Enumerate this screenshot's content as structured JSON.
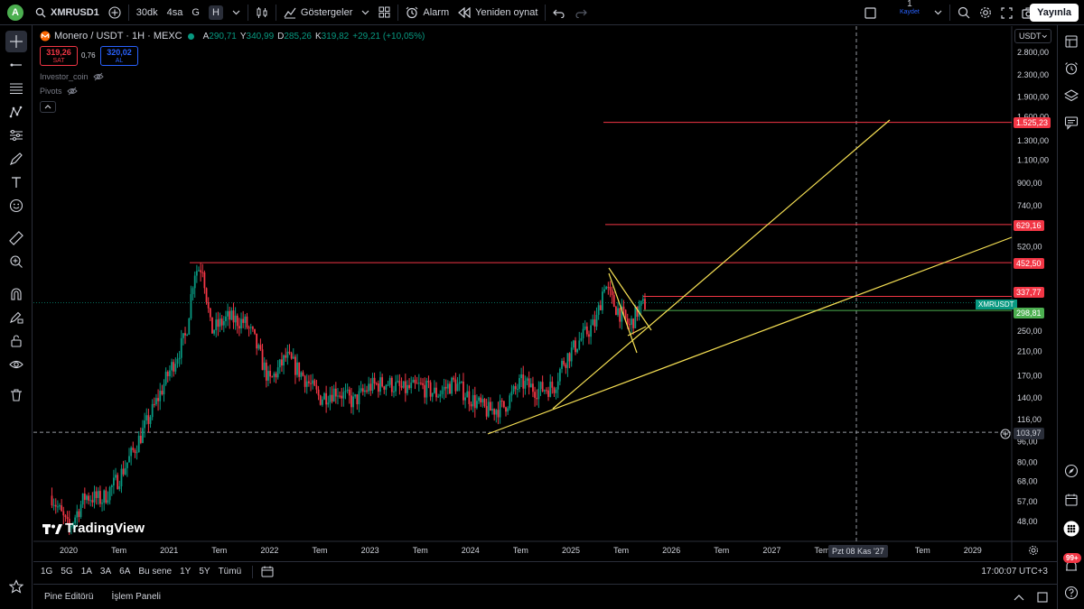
{
  "topbar": {
    "avatar_letter": "A",
    "symbol": "XMRUSD1",
    "intervals": [
      "30dk",
      "4sa",
      "G",
      "H"
    ],
    "indicators_label": "Göstergeler",
    "alarm_label": "Alarm",
    "replay_label": "Yeniden oynat",
    "save_count": "1",
    "save_label": "Kaydet",
    "publish_label": "Yayınla"
  },
  "legend": {
    "title": "Monero / USDT · 1H · MEXC",
    "open_label": "A",
    "open": "290,71",
    "high_label": "Y",
    "high": "340,99",
    "low_label": "D",
    "low": "285,26",
    "close_label": "K",
    "close": "319,82",
    "change": "+29,21 (+10,05%)"
  },
  "trade": {
    "sell_price": "319,26",
    "sell_label": "SAT",
    "spread": "0,76",
    "buy_price": "320,02",
    "buy_label": "AL"
  },
  "indicators": [
    {
      "name": "Investor_coin"
    },
    {
      "name": "Pivots"
    }
  ],
  "price_axis": {
    "currency": "USDT",
    "ticks": [
      "2.800,00",
      "2.300,00",
      "1.900,00",
      "1.600,00",
      "1.300,00",
      "1.100,00",
      "900,00",
      "740,00",
      "520,00",
      "250,00",
      "210,00",
      "170,00",
      "140,00",
      "116,00",
      "96,00",
      "80,00",
      "68,00",
      "57,00",
      "48,00"
    ],
    "level_tags": [
      "1.525,23",
      "629,16",
      "452,50",
      "337,77",
      "298,81"
    ],
    "symbol_tag": "XMRUSDT",
    "cursor_price": "103,97"
  },
  "time_axis": {
    "labels": [
      "2020",
      "Tem",
      "2021",
      "Tem",
      "2022",
      "Tem",
      "2023",
      "Tem",
      "2024",
      "Tem",
      "2025",
      "Tem",
      "2026",
      "Tem",
      "2027",
      "Tem",
      "Tem",
      "2029"
    ],
    "cursor_date": "Pzt 08 Kas '27"
  },
  "watermark": "TradingView",
  "range_bar": {
    "ranges": [
      "1G",
      "5G",
      "1A",
      "3A",
      "6A",
      "Bu sene",
      "1Y",
      "5Y",
      "Tümü"
    ],
    "clock": "17:00:07 UTC+3"
  },
  "panel_bar": {
    "pine_editor": "Pine Editörü",
    "trading_panel": "İşlem Paneli"
  },
  "notifications_badge": "99+",
  "colors": {
    "up": "#089981",
    "down": "#f23645",
    "level_line": "#f23645",
    "trend_line": "#f7e154",
    "accent": "#2962ff"
  },
  "chart_data": {
    "type": "candlestick",
    "symbol": "XMRUSDT",
    "interval": "1H",
    "price_scale": "log",
    "yrange": [
      40,
      3200
    ],
    "xrange": [
      "2019-10",
      "2029-07"
    ],
    "horizontal_levels": [
      1525.23,
      629.16,
      452.5,
      337.77,
      298.81
    ],
    "price_series": [
      [
        "2019-11",
        60
      ],
      [
        "2020-01",
        45
      ],
      [
        "2020-03",
        60
      ],
      [
        "2020-05",
        58
      ],
      [
        "2020-07",
        70
      ],
      [
        "2020-09",
        92
      ],
      [
        "2020-11",
        125
      ],
      [
        "2021-01",
        175
      ],
      [
        "2021-03",
        240
      ],
      [
        "2021-04",
        420
      ],
      [
        "2021-05",
        440
      ],
      [
        "2021-06",
        250
      ],
      [
        "2021-08",
        280
      ],
      [
        "2021-10",
        270
      ],
      [
        "2021-11",
        240
      ],
      [
        "2022-01",
        160
      ],
      [
        "2022-03",
        200
      ],
      [
        "2022-05",
        170
      ],
      [
        "2022-07",
        140
      ],
      [
        "2022-09",
        150
      ],
      [
        "2022-11",
        135
      ],
      [
        "2023-01",
        155
      ],
      [
        "2023-03",
        160
      ],
      [
        "2023-05",
        150
      ],
      [
        "2023-07",
        155
      ],
      [
        "2023-09",
        145
      ],
      [
        "2023-11",
        160
      ],
      [
        "2024-01",
        140
      ],
      [
        "2024-03",
        125
      ],
      [
        "2024-05",
        130
      ],
      [
        "2024-07",
        160
      ],
      [
        "2024-09",
        150
      ],
      [
        "2024-11",
        155
      ],
      [
        "2024-12",
        190
      ],
      [
        "2025-02",
        230
      ],
      [
        "2025-04",
        270
      ],
      [
        "2025-05",
        380
      ],
      [
        "2025-06",
        320
      ],
      [
        "2025-07",
        290
      ],
      [
        "2025-08",
        260
      ],
      [
        "2025-09",
        300
      ],
      [
        "2025-10",
        319.82
      ]
    ]
  }
}
